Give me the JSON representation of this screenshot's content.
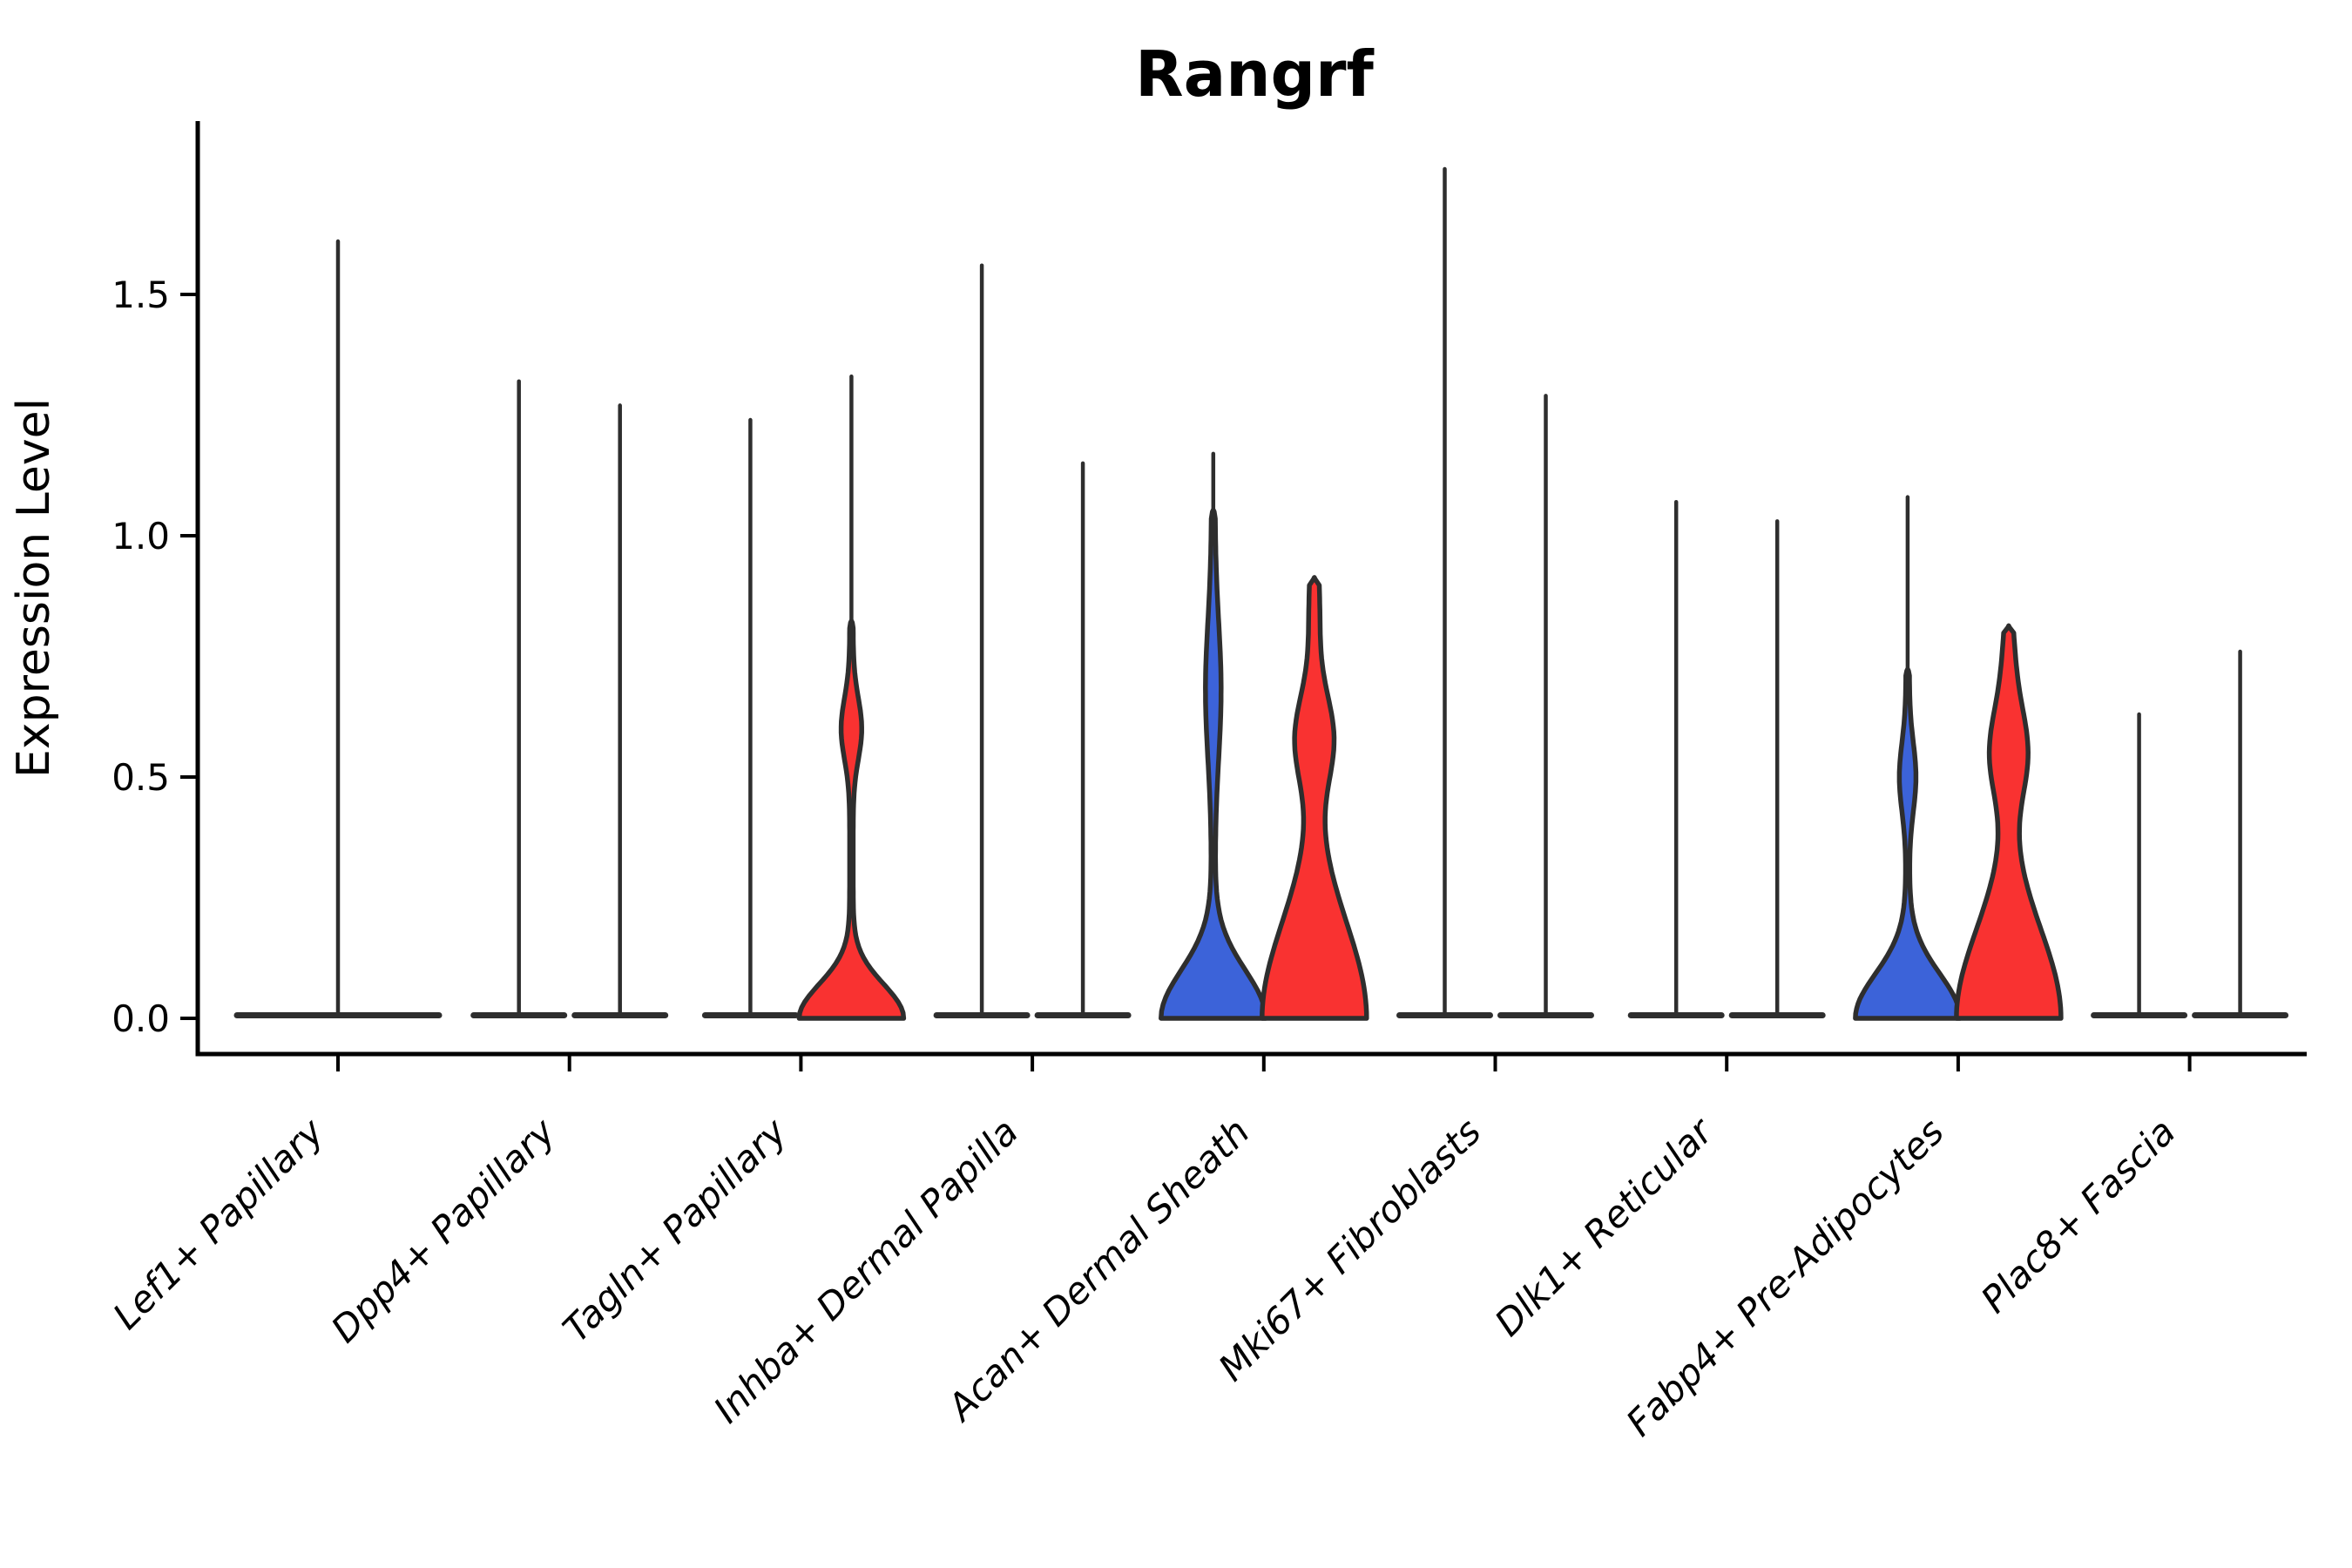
{
  "title": "Rangrf",
  "ylabel": "Expression Level",
  "colors": {
    "red": "#f93231",
    "blue": "#3c63d9",
    "ink": "#2e2e2e",
    "spine": "#000000",
    "background": "#ffffff"
  },
  "chart_data": {
    "type": "violin",
    "title": "Rangrf",
    "xlabel": "",
    "ylabel": "Expression Level",
    "ylim": [
      -0.08,
      1.86
    ],
    "yticks": [
      0.0,
      0.5,
      1.0,
      1.5
    ],
    "ytick_labels": [
      "0.0",
      "0.5",
      "1.0",
      "1.5"
    ],
    "grid": false,
    "legend": "none",
    "x_label_rotation_deg": 45,
    "categories": [
      "Lef1+ Papillary",
      "Dpp4+ Papillary",
      "Tagln+ Papillary",
      "Inhba+ Dermal Papilla",
      "Acan+ Dermal Sheath",
      "Mki67+ Fibroblasts",
      "Dlk1+ Reticular",
      "Fabp4+ Pre-Adipocytes",
      "Plac8+ Fascia"
    ],
    "groups": [
      {
        "category": "Lef1+ Papillary",
        "violins": [
          {
            "condition": "all",
            "fill": "none",
            "shape": "spike",
            "offset": 0,
            "half_width": 122,
            "spike_max": 1.61
          }
        ]
      },
      {
        "category": "Dpp4+ Papillary",
        "violins": [
          {
            "condition": "blue",
            "fill": "none",
            "shape": "spike",
            "offset": -58,
            "spike_max": 1.32
          },
          {
            "condition": "red",
            "fill": "none",
            "shape": "spike",
            "offset": 58,
            "spike_max": 1.27
          }
        ]
      },
      {
        "category": "Tagln+ Papillary",
        "violins": [
          {
            "condition": "blue",
            "fill": "none",
            "shape": "spike",
            "offset": -58,
            "spike_max": 1.24
          },
          {
            "condition": "red",
            "fill": "red",
            "shape": "body",
            "offset": 58,
            "spike_max": 1.33,
            "body_max": 0.82,
            "bumps": [
              [
                0.0,
                1.0,
                0.1
              ],
              [
                0.6,
                0.17,
                0.09
              ]
            ]
          }
        ]
      },
      {
        "category": "Inhba+ Dermal Papilla",
        "violins": [
          {
            "condition": "blue",
            "fill": "none",
            "shape": "spike",
            "offset": -58,
            "spike_max": 1.56
          },
          {
            "condition": "red",
            "fill": "none",
            "shape": "spike",
            "offset": 58,
            "spike_max": 1.15
          }
        ]
      },
      {
        "category": "Acan+ Dermal Sheath",
        "violins": [
          {
            "condition": "blue",
            "fill": "blue",
            "shape": "body",
            "offset": -58,
            "spike_max": 1.17,
            "body_max": 1.05,
            "bumps": [
              [
                0.0,
                1.0,
                0.14
              ],
              [
                0.68,
                0.12,
                0.2
              ]
            ]
          },
          {
            "condition": "red",
            "fill": "red",
            "shape": "body",
            "offset": 58,
            "spike_max": 0.91,
            "body_max": 0.91,
            "bumps": [
              [
                0.0,
                1.0,
                0.28
              ],
              [
                0.58,
                0.34,
                0.13
              ],
              [
                0.85,
                0.07,
                0.15
              ]
            ]
          }
        ]
      },
      {
        "category": "Mki67+ Fibroblasts",
        "violins": [
          {
            "condition": "blue",
            "fill": "none",
            "shape": "spike",
            "offset": -58,
            "spike_max": 1.76
          },
          {
            "condition": "red",
            "fill": "none",
            "shape": "spike",
            "offset": 58,
            "spike_max": 1.29
          }
        ]
      },
      {
        "category": "Dlk1+ Reticular",
        "violins": [
          {
            "condition": "blue",
            "fill": "none",
            "shape": "spike",
            "offset": -58,
            "spike_max": 1.07
          },
          {
            "condition": "red",
            "fill": "none",
            "shape": "spike",
            "offset": 58,
            "spike_max": 1.03
          }
        ]
      },
      {
        "category": "Fabp4+ Pre-Adipocytes",
        "violins": [
          {
            "condition": "blue",
            "fill": "blue",
            "shape": "body",
            "offset": -58,
            "spike_max": 1.08,
            "body_max": 0.72,
            "bumps": [
              [
                0.0,
                1.0,
                0.13
              ],
              [
                0.5,
                0.13,
                0.1
              ]
            ]
          },
          {
            "condition": "red",
            "fill": "red",
            "shape": "body",
            "offset": 58,
            "spike_max": 0.81,
            "body_max": 0.81,
            "bumps": [
              [
                0.0,
                1.0,
                0.26
              ],
              [
                0.55,
                0.33,
                0.13
              ],
              [
                0.74,
                0.07,
                0.13
              ]
            ]
          }
        ]
      },
      {
        "category": "Plac8+ Fascia",
        "violins": [
          {
            "condition": "blue",
            "fill": "none",
            "shape": "spike",
            "offset": -58,
            "spike_max": 0.63
          },
          {
            "condition": "red",
            "fill": "none",
            "shape": "spike",
            "offset": 58,
            "spike_max": 0.76
          }
        ]
      }
    ]
  }
}
